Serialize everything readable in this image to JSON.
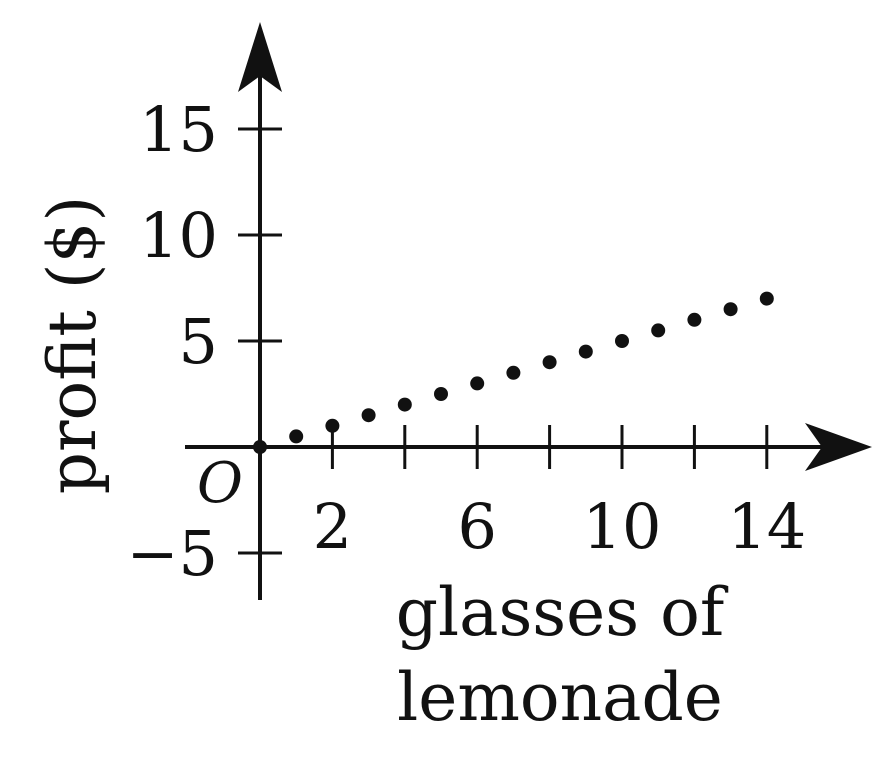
{
  "chart_data": {
    "type": "scatter",
    "xlabel_lines": [
      "glasses of",
      "lemonade"
    ],
    "ylabel": "profit ($)",
    "origin_label": "O",
    "x_tick_labels": [
      "2",
      "6",
      "10",
      "14"
    ],
    "y_tick_labels": [
      "15",
      "10",
      "5",
      "−5"
    ],
    "x_ticks_minor": [
      2,
      4,
      6,
      8,
      10,
      12,
      14
    ],
    "y_ticks_minor": [
      15,
      10,
      5,
      -5
    ],
    "x_tick_values": [
      2,
      6,
      10,
      14
    ],
    "y_tick_values": [
      15,
      10,
      5,
      -5
    ],
    "xlim": [
      0,
      14
    ],
    "ylim": [
      -5,
      15
    ],
    "grid": false,
    "colors": {
      "ink": "#111111"
    },
    "points": [
      {
        "x": 0,
        "y": 0
      },
      {
        "x": 1,
        "y": 0.5
      },
      {
        "x": 2,
        "y": 1
      },
      {
        "x": 3,
        "y": 1.5
      },
      {
        "x": 4,
        "y": 2
      },
      {
        "x": 5,
        "y": 2.5
      },
      {
        "x": 6,
        "y": 3
      },
      {
        "x": 7,
        "y": 3.5
      },
      {
        "x": 8,
        "y": 4
      },
      {
        "x": 9,
        "y": 4.5
      },
      {
        "x": 10,
        "y": 5
      },
      {
        "x": 11,
        "y": 5.5
      },
      {
        "x": 12,
        "y": 6
      },
      {
        "x": 13,
        "y": 6.5
      },
      {
        "x": 14,
        "y": 7
      }
    ]
  }
}
